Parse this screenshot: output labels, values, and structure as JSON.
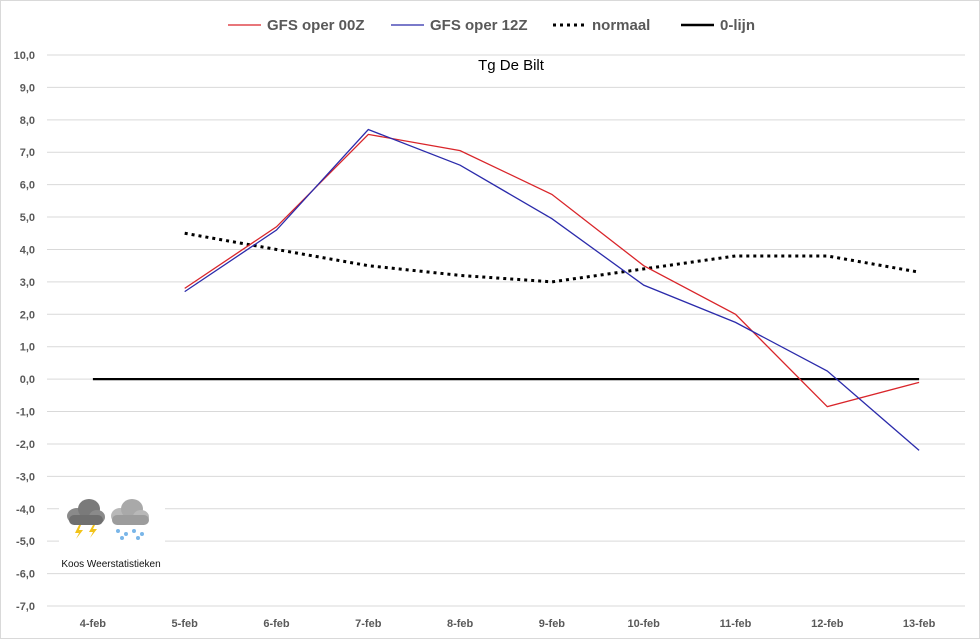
{
  "chart_data": {
    "type": "line",
    "title": "Tg De Bilt",
    "categories": [
      "4-feb",
      "5-feb",
      "6-feb",
      "7-feb",
      "8-feb",
      "9-feb",
      "10-feb",
      "11-feb",
      "12-feb",
      "13-feb"
    ],
    "ylim": [
      -7,
      10
    ],
    "yticks": [
      "-7,0",
      "-6,0",
      "-5,0",
      "-4,0",
      "-3,0",
      "-2,0",
      "-1,0",
      "0,0",
      "1,0",
      "2,0",
      "3,0",
      "4,0",
      "5,0",
      "6,0",
      "7,0",
      "8,0",
      "9,0",
      "10,0"
    ],
    "grid": true,
    "legend_position": "top",
    "series": [
      {
        "name": "GFS oper 00Z",
        "color": "#d9252a",
        "style": "solid",
        "values": [
          null,
          2.8,
          4.7,
          7.55,
          7.05,
          5.7,
          3.5,
          2.0,
          -0.85,
          -0.1
        ]
      },
      {
        "name": "GFS oper 12Z",
        "color": "#2b2bab",
        "style": "solid",
        "values": [
          null,
          2.7,
          4.6,
          7.7,
          6.6,
          4.95,
          2.9,
          1.75,
          0.25,
          -2.2
        ]
      },
      {
        "name": "normaal",
        "color": "#000000",
        "style": "dotted",
        "values": [
          null,
          4.5,
          4.0,
          3.5,
          3.2,
          3.0,
          3.4,
          3.8,
          3.8,
          3.3
        ]
      },
      {
        "name": "0-lijn",
        "color": "#000000",
        "style": "thick",
        "values": [
          0,
          0,
          0,
          0,
          0,
          0,
          0,
          0,
          0,
          0
        ]
      }
    ]
  },
  "logo": {
    "caption": "Koos Weerstatistieken",
    "icons": [
      "thunderstorm-cloud-icon",
      "snow-cloud-icon"
    ]
  }
}
